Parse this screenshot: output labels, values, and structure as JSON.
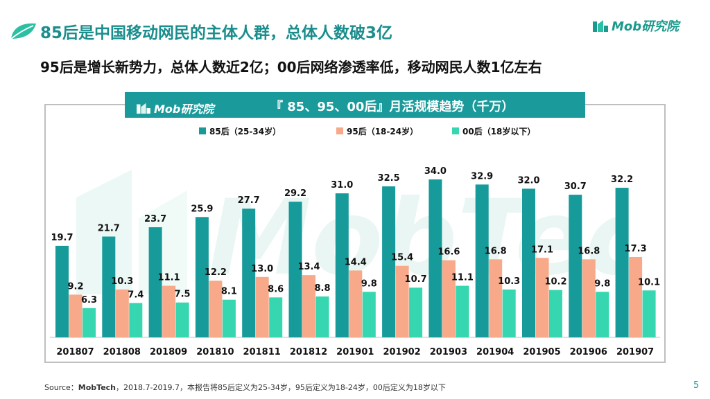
{
  "page": {
    "title": "85后是中国移动网民的主体人群，总体人数破3亿",
    "subtitle": "95后是增长新势力，总体人数近2亿；00后网络渗透率低，移动网民人数1亿左右",
    "brand": "Mob研究院",
    "source_label": "Source：",
    "source_org": "MobTech",
    "source_text": "，2018.7-2019.7，本报告将85后定义为25-34岁，95后定义为18-24岁，00后定义为18岁以下",
    "page_number": "5",
    "watermark_text": "MobTech"
  },
  "colors": {
    "accent": "#1a9a9a",
    "series85": "#169a9a",
    "series95": "#f7a98a",
    "series00": "#36d6b0"
  },
  "chart_data": {
    "type": "bar",
    "title": "『 85、95、00后』月活规模趋势（千万）",
    "categories": [
      "201807",
      "201808",
      "201809",
      "201810",
      "201811",
      "201812",
      "201901",
      "201902",
      "201903",
      "201904",
      "201905",
      "201906",
      "201907"
    ],
    "series": [
      {
        "name": "85后（25-34岁）",
        "values": [
          19.7,
          21.7,
          23.7,
          25.9,
          27.7,
          29.2,
          31.0,
          32.5,
          34.0,
          32.9,
          32.0,
          30.7,
          32.2
        ]
      },
      {
        "name": "95后（18-24岁）",
        "values": [
          9.2,
          10.3,
          11.1,
          12.2,
          13.0,
          13.4,
          14.4,
          15.4,
          16.6,
          16.8,
          17.1,
          16.8,
          17.3
        ]
      },
      {
        "name": "00后（18岁以下）",
        "values": [
          6.3,
          7.4,
          7.5,
          8.1,
          8.6,
          8.8,
          9.8,
          10.7,
          11.1,
          10.3,
          10.2,
          9.8,
          10.1
        ]
      }
    ],
    "ylim": [
      0,
      34
    ],
    "grid": false,
    "legend": "top-center"
  }
}
